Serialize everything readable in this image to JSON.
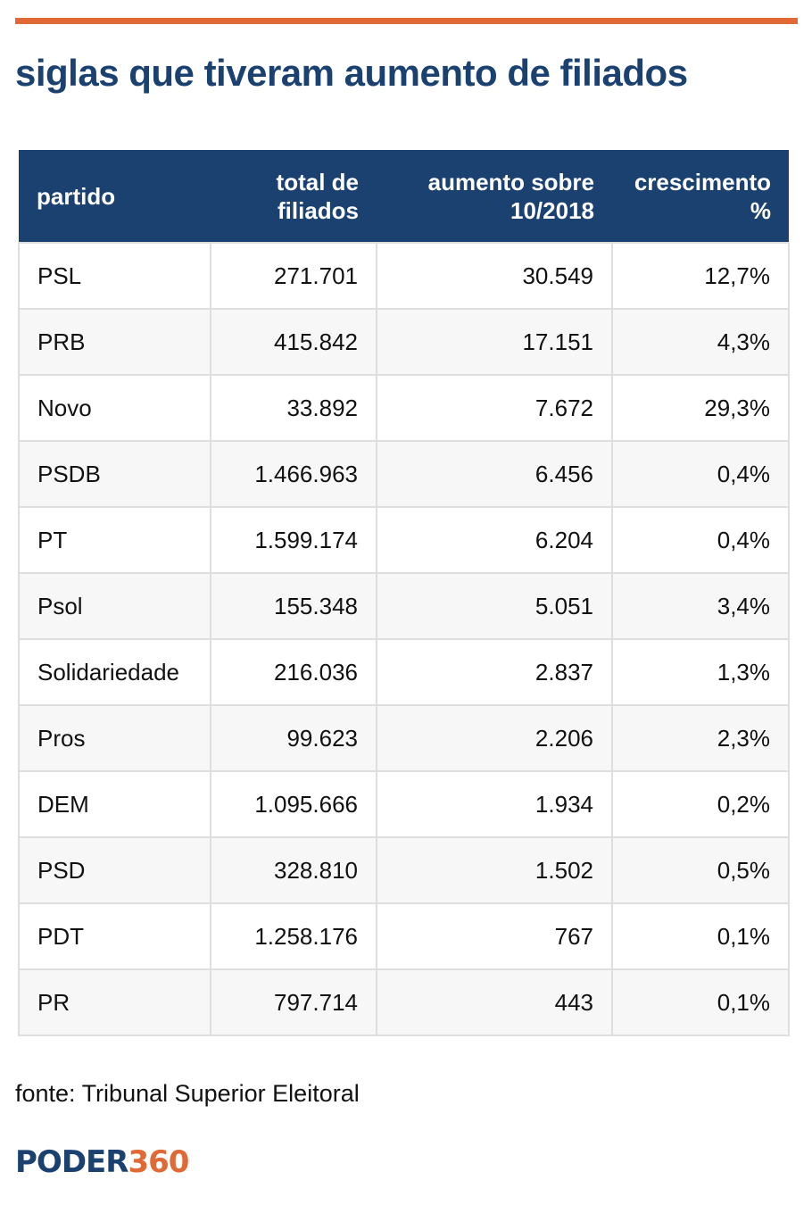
{
  "colors": {
    "accent": "#e06a35",
    "header_bg": "#1a4170",
    "title": "#1a4170"
  },
  "title": "siglas que tiveram aumento de filiados",
  "columns": [
    {
      "line1": "partido",
      "line2": ""
    },
    {
      "line1": "total de",
      "line2": "filiados"
    },
    {
      "line1": "aumento sobre",
      "line2": "10/2018"
    },
    {
      "line1": "crescimento",
      "line2": "%"
    }
  ],
  "chart_data": {
    "type": "table",
    "title": "siglas que tiveram aumento de filiados",
    "columns": [
      "partido",
      "total de filiados",
      "aumento sobre 10/2018",
      "crescimento %"
    ],
    "rows": [
      [
        "PSL",
        "271.701",
        "30.549",
        "12,7%"
      ],
      [
        "PRB",
        "415.842",
        "17.151",
        "4,3%"
      ],
      [
        "Novo",
        "33.892",
        "7.672",
        "29,3%"
      ],
      [
        "PSDB",
        "1.466.963",
        "6.456",
        "0,4%"
      ],
      [
        "PT",
        "1.599.174",
        "6.204",
        "0,4%"
      ],
      [
        "Psol",
        "155.348",
        "5.051",
        "3,4%"
      ],
      [
        "Solidariedade",
        "216.036",
        "2.837",
        "1,3%"
      ],
      [
        "Pros",
        "99.623",
        "2.206",
        "2,3%"
      ],
      [
        "DEM",
        "1.095.666",
        "1.934",
        "0,2%"
      ],
      [
        "PSD",
        "328.810",
        "1.502",
        "0,5%"
      ],
      [
        "PDT",
        "1.258.176",
        "767",
        "0,1%"
      ],
      [
        "PR",
        "797.714",
        "443",
        "0,1%"
      ]
    ]
  },
  "source": "fonte: Tribunal Superior Eleitoral",
  "logo": {
    "word": "PODER",
    "number": "360"
  }
}
